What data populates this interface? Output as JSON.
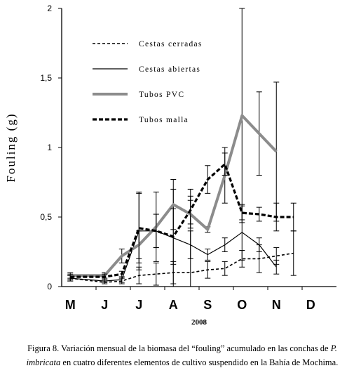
{
  "chart_data": {
    "type": "line",
    "categories": [
      "M",
      "J",
      "J",
      "A",
      "S",
      "O",
      "N",
      "D"
    ],
    "xlabel": "2008",
    "ylabel": "Fouling (g)",
    "ylim": [
      0,
      2
    ],
    "yticks": [
      "0",
      "0,5",
      "1",
      "1,5",
      "2"
    ],
    "grid": false,
    "legend_position": "top-left",
    "series": [
      {
        "name": "Cestas cerradas",
        "style": "dashed-thin",
        "color": "#000000",
        "x": [
          0,
          1,
          1.5,
          2,
          2.5,
          3,
          3.5,
          4,
          4.5,
          5,
          5.5,
          6,
          6.5
        ],
        "values": [
          0.06,
          0.03,
          0.04,
          0.08,
          0.09,
          0.1,
          0.1,
          0.12,
          0.13,
          0.2,
          0.2,
          0.22,
          0.24
        ],
        "errors": [
          0.02,
          0.01,
          0.02,
          0.06,
          0.08,
          0.08,
          0.6,
          0.06,
          0.05,
          0.06,
          0.1,
          0.06,
          0.16
        ]
      },
      {
        "name": "Cestas abiertas",
        "style": "solid-thin",
        "color": "#000000",
        "x": [
          0,
          1,
          1.5,
          2,
          2.5,
          3,
          3.5,
          4,
          4.5,
          5,
          5.5,
          6
        ],
        "values": [
          0.06,
          0.04,
          0.05,
          0.4,
          0.4,
          0.35,
          0.3,
          0.23,
          0.3,
          0.39,
          0.3,
          0.14
        ],
        "errors": [
          0.02,
          0.01,
          0.02,
          0.28,
          0.12,
          0.35,
          0.1,
          0.04,
          0.05,
          0.2,
          0.05,
          0.05
        ]
      },
      {
        "name": "Tubos PVC",
        "style": "solid-thick",
        "color": "#8c8c8c",
        "x": [
          0,
          1,
          1.5,
          2,
          2.5,
          3,
          3.5,
          4,
          4.5,
          5,
          5.5,
          6
        ],
        "values": [
          0.08,
          0.08,
          0.22,
          0.3,
          0.43,
          0.59,
          0.52,
          0.41,
          0.8,
          1.23,
          1.1,
          0.97
        ],
        "errors": [
          0.02,
          0.02,
          0.05,
          0.1,
          0.25,
          0.18,
          0.1,
          0.02,
          0.2,
          0.77,
          0.3,
          0.5
        ]
      },
      {
        "name": "Tubos malla",
        "style": "dashed-thick",
        "color": "#000000",
        "x": [
          0,
          1,
          1.5,
          2,
          2.5,
          3,
          3.5,
          4,
          4.5,
          5,
          5.5,
          6,
          6.5
        ],
        "values": [
          0.07,
          0.07,
          0.09,
          0.42,
          0.4,
          0.36,
          0.55,
          0.77,
          0.88,
          0.53,
          0.52,
          0.5,
          0.5
        ],
        "errors": [
          0.02,
          0.02,
          0.02,
          0.25,
          0.12,
          0.2,
          0.1,
          0.1,
          0.08,
          0.05,
          0.05,
          0.1,
          0.1
        ]
      }
    ]
  },
  "caption": {
    "prefix": "Figura 8. Variación mensual de la biomasa del “fouling” acumulado en las conchas de ",
    "species": "P. imbricata",
    "suffix": " en cuatro diferentes elementos de cultivo suspendido en la Bahía de Mochima."
  }
}
